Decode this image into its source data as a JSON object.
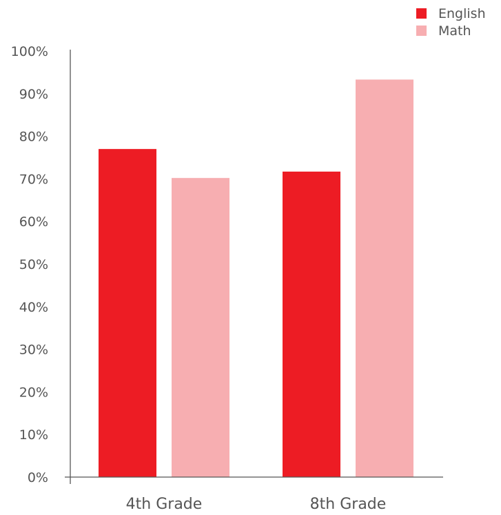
{
  "chart_data": {
    "type": "bar",
    "categories": [
      "4th Grade",
      "8th Grade"
    ],
    "series": [
      {
        "name": "English",
        "values": [
          77,
          71.7
        ],
        "color": "#ed1c24"
      },
      {
        "name": "Math",
        "values": [
          70.2,
          93.3
        ],
        "color": "#f7aeb1"
      }
    ],
    "title": "",
    "xlabel": "",
    "ylabel": "",
    "ylim": [
      0,
      100
    ],
    "yticks": [
      "0%",
      "10%",
      "20%",
      "30%",
      "40%",
      "50%",
      "60%",
      "70%",
      "80%",
      "90%",
      "100%"
    ],
    "grid": false,
    "legend_position": "top-right"
  }
}
